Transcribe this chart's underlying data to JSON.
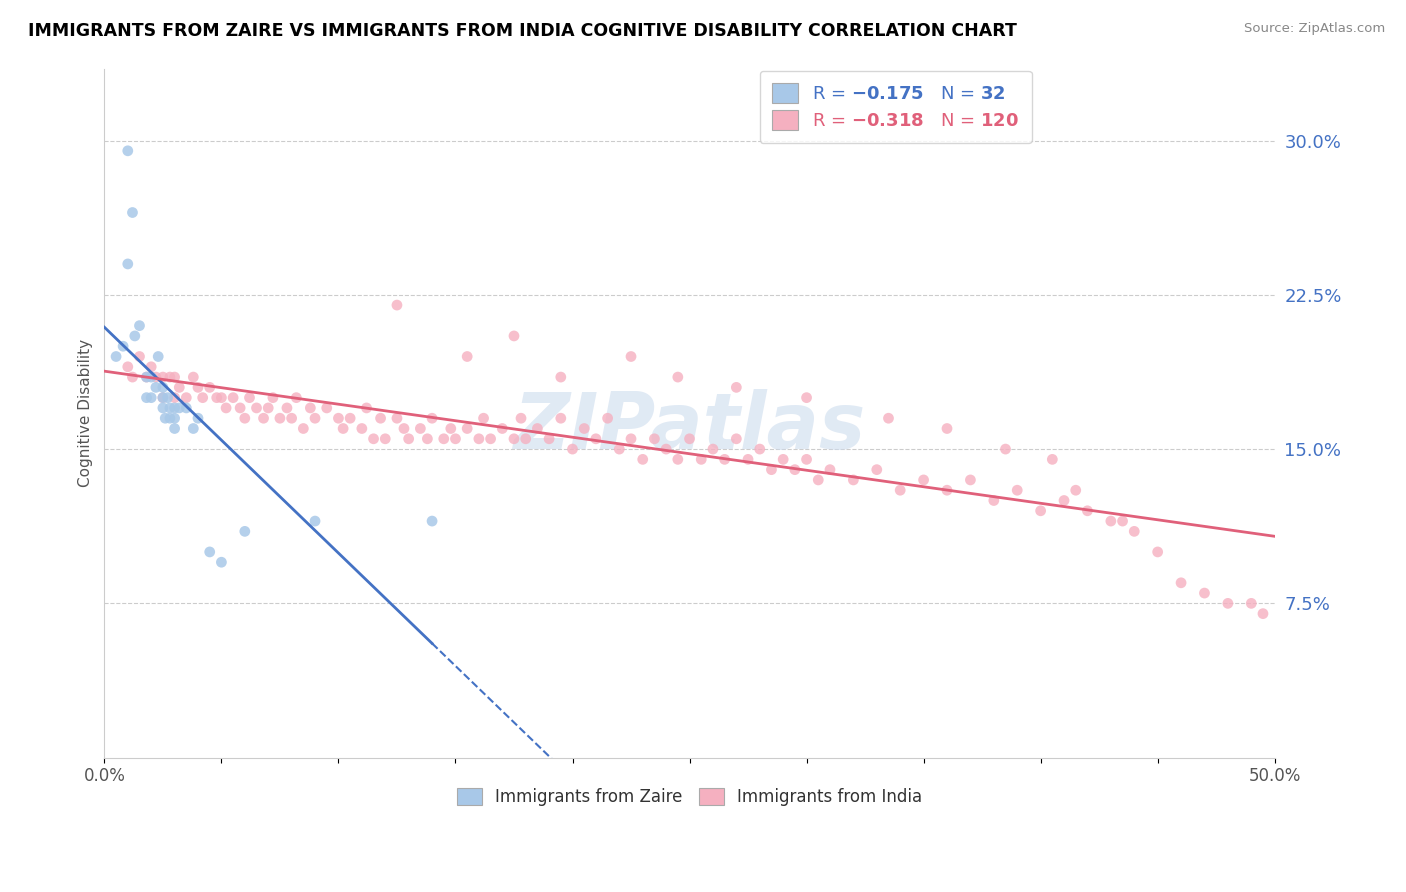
{
  "title": "IMMIGRANTS FROM ZAIRE VS IMMIGRANTS FROM INDIA COGNITIVE DISABILITY CORRELATION CHART",
  "source": "Source: ZipAtlas.com",
  "ylabel": "Cognitive Disability",
  "right_yticks": [
    "30.0%",
    "22.5%",
    "15.0%",
    "7.5%"
  ],
  "right_ytick_vals": [
    0.3,
    0.225,
    0.15,
    0.075
  ],
  "xmin": 0.0,
  "xmax": 0.5,
  "ymin": 0.0,
  "ymax": 0.335,
  "zaire_color": "#a8c8e8",
  "india_color": "#f5b0c0",
  "zaire_line_color": "#4472c4",
  "india_line_color": "#e0607a",
  "watermark": "ZIPatlas",
  "zaire_R": -0.175,
  "zaire_N": 32,
  "india_R": -0.318,
  "india_N": 120,
  "zaire_x": [
    0.005,
    0.008,
    0.01,
    0.01,
    0.012,
    0.013,
    0.015,
    0.018,
    0.018,
    0.02,
    0.02,
    0.022,
    0.023,
    0.025,
    0.025,
    0.025,
    0.026,
    0.027,
    0.028,
    0.028,
    0.03,
    0.03,
    0.03,
    0.032,
    0.035,
    0.038,
    0.04,
    0.045,
    0.05,
    0.06,
    0.09,
    0.14
  ],
  "zaire_y": [
    0.195,
    0.2,
    0.295,
    0.24,
    0.265,
    0.205,
    0.21,
    0.175,
    0.185,
    0.175,
    0.185,
    0.18,
    0.195,
    0.17,
    0.18,
    0.175,
    0.165,
    0.175,
    0.165,
    0.17,
    0.16,
    0.17,
    0.165,
    0.17,
    0.17,
    0.16,
    0.165,
    0.1,
    0.095,
    0.11,
    0.115,
    0.115
  ],
  "india_x": [
    0.01,
    0.012,
    0.015,
    0.018,
    0.02,
    0.022,
    0.025,
    0.025,
    0.028,
    0.03,
    0.03,
    0.032,
    0.035,
    0.038,
    0.04,
    0.042,
    0.045,
    0.048,
    0.05,
    0.052,
    0.055,
    0.058,
    0.06,
    0.062,
    0.065,
    0.068,
    0.07,
    0.072,
    0.075,
    0.078,
    0.08,
    0.082,
    0.085,
    0.088,
    0.09,
    0.095,
    0.1,
    0.102,
    0.105,
    0.11,
    0.112,
    0.115,
    0.118,
    0.12,
    0.125,
    0.128,
    0.13,
    0.135,
    0.138,
    0.14,
    0.145,
    0.148,
    0.15,
    0.155,
    0.16,
    0.162,
    0.165,
    0.17,
    0.175,
    0.178,
    0.18,
    0.185,
    0.19,
    0.195,
    0.2,
    0.205,
    0.21,
    0.215,
    0.22,
    0.225,
    0.23,
    0.235,
    0.24,
    0.245,
    0.25,
    0.255,
    0.26,
    0.265,
    0.27,
    0.275,
    0.28,
    0.285,
    0.29,
    0.295,
    0.3,
    0.305,
    0.31,
    0.32,
    0.33,
    0.34,
    0.35,
    0.36,
    0.37,
    0.38,
    0.39,
    0.4,
    0.41,
    0.42,
    0.43,
    0.44,
    0.125,
    0.155,
    0.175,
    0.195,
    0.225,
    0.245,
    0.27,
    0.3,
    0.335,
    0.36,
    0.385,
    0.405,
    0.415,
    0.435,
    0.45,
    0.46,
    0.47,
    0.48,
    0.49,
    0.495
  ],
  "india_y": [
    0.19,
    0.185,
    0.195,
    0.185,
    0.19,
    0.185,
    0.185,
    0.175,
    0.185,
    0.175,
    0.185,
    0.18,
    0.175,
    0.185,
    0.18,
    0.175,
    0.18,
    0.175,
    0.175,
    0.17,
    0.175,
    0.17,
    0.165,
    0.175,
    0.17,
    0.165,
    0.17,
    0.175,
    0.165,
    0.17,
    0.165,
    0.175,
    0.16,
    0.17,
    0.165,
    0.17,
    0.165,
    0.16,
    0.165,
    0.16,
    0.17,
    0.155,
    0.165,
    0.155,
    0.165,
    0.16,
    0.155,
    0.16,
    0.155,
    0.165,
    0.155,
    0.16,
    0.155,
    0.16,
    0.155,
    0.165,
    0.155,
    0.16,
    0.155,
    0.165,
    0.155,
    0.16,
    0.155,
    0.165,
    0.15,
    0.16,
    0.155,
    0.165,
    0.15,
    0.155,
    0.145,
    0.155,
    0.15,
    0.145,
    0.155,
    0.145,
    0.15,
    0.145,
    0.155,
    0.145,
    0.15,
    0.14,
    0.145,
    0.14,
    0.145,
    0.135,
    0.14,
    0.135,
    0.14,
    0.13,
    0.135,
    0.13,
    0.135,
    0.125,
    0.13,
    0.12,
    0.125,
    0.12,
    0.115,
    0.11,
    0.22,
    0.195,
    0.205,
    0.185,
    0.195,
    0.185,
    0.18,
    0.175,
    0.165,
    0.16,
    0.15,
    0.145,
    0.13,
    0.115,
    0.1,
    0.085,
    0.08,
    0.075,
    0.075,
    0.07
  ]
}
